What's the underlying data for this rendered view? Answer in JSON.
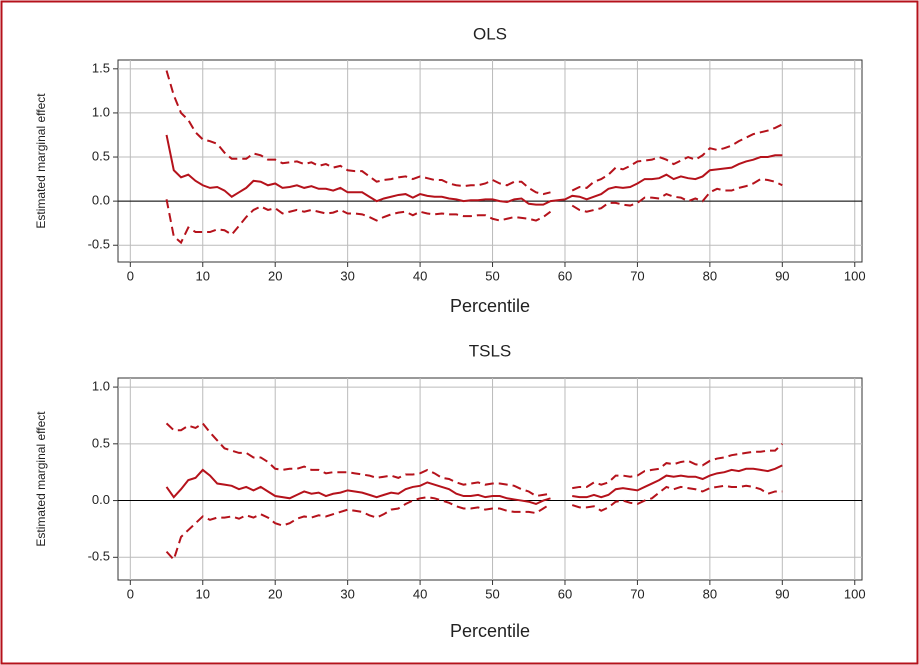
{
  "chart_data": [
    {
      "type": "line",
      "title": "OLS",
      "x_label": "Percentile",
      "y_label": "Estimated marginal effect",
      "xlim": [
        -1.7,
        101
      ],
      "xticks": [
        0,
        10,
        20,
        30,
        40,
        50,
        60,
        70,
        80,
        90,
        100
      ],
      "ylim": [
        -0.69,
        1.6
      ],
      "yticks": [
        -0.5,
        {
          "value": 0,
          "label": "0.0"
        },
        0.5,
        {
          "value": 1,
          "label": "1.0"
        },
        1.5
      ],
      "grid": true,
      "zero_line": true,
      "x": [
        5,
        6,
        7,
        8,
        9,
        10,
        11,
        12,
        13,
        14,
        15,
        16,
        17,
        18,
        19,
        20,
        21,
        22,
        23,
        24,
        25,
        26,
        27,
        28,
        29,
        30,
        31,
        32,
        33,
        34,
        35,
        36,
        37,
        38,
        39,
        40,
        41,
        42,
        43,
        44,
        45,
        46,
        47,
        48,
        49,
        50,
        51,
        52,
        53,
        54,
        55,
        56,
        57,
        58,
        59,
        60,
        61,
        62,
        63,
        64,
        65,
        66,
        67,
        68,
        69,
        70,
        71,
        72,
        73,
        74,
        75,
        76,
        77,
        78,
        79,
        80,
        81,
        82,
        83,
        84,
        85,
        86,
        87,
        88,
        89,
        90
      ],
      "series": [
        {
          "color": "#b5121b",
          "dash": false,
          "values": [
            0.75,
            0.35,
            0.27,
            0.3,
            0.23,
            0.18,
            0.15,
            0.16,
            0.12,
            0.05,
            0.1,
            0.15,
            0.23,
            0.22,
            0.18,
            0.2,
            0.15,
            0.16,
            0.18,
            0.15,
            0.17,
            0.14,
            0.14,
            0.12,
            0.15,
            0.1,
            0.1,
            0.1,
            0.05,
            0.0,
            0.03,
            0.05,
            0.07,
            0.08,
            0.04,
            0.08,
            0.06,
            0.05,
            0.05,
            0.03,
            0.02,
            0.0,
            0.01,
            0.01,
            0.02,
            0.02,
            0.0,
            -0.01,
            0.02,
            0.03,
            -0.03,
            -0.04,
            -0.04,
            0.0,
            0.01,
            0.02,
            0.06,
            0.05,
            0.02,
            0.05,
            0.08,
            0.14,
            0.16,
            0.15,
            0.16,
            0.2,
            0.25,
            0.25,
            0.26,
            0.3,
            0.25,
            0.28,
            0.26,
            0.25,
            0.28,
            0.35,
            0.36,
            0.37,
            0.38,
            0.42,
            0.45,
            0.47,
            0.5,
            0.5,
            0.52,
            0.52
          ]
        },
        {
          "color": "#b5121b",
          "dash": true,
          "values": [
            1.48,
            1.2,
            1.0,
            0.92,
            0.78,
            0.7,
            0.68,
            0.65,
            0.55,
            0.48,
            0.48,
            0.48,
            0.54,
            0.52,
            0.47,
            0.47,
            0.43,
            0.44,
            0.45,
            0.42,
            0.44,
            0.4,
            0.42,
            0.38,
            0.4,
            0.35,
            0.34,
            0.34,
            0.28,
            0.22,
            0.24,
            0.25,
            0.27,
            0.28,
            0.25,
            0.28,
            0.26,
            0.24,
            0.24,
            0.2,
            0.18,
            0.17,
            0.18,
            0.18,
            0.2,
            0.24,
            0.2,
            0.18,
            0.22,
            0.22,
            0.15,
            0.1,
            0.08,
            0.1,
            null,
            null,
            0.12,
            0.16,
            0.15,
            0.22,
            0.25,
            0.3,
            0.38,
            0.36,
            0.4,
            0.45,
            0.46,
            0.47,
            0.5,
            0.47,
            0.42,
            0.46,
            0.5,
            0.47,
            0.52,
            0.6,
            0.58,
            0.6,
            0.63,
            0.68,
            0.72,
            0.76,
            0.78,
            0.8,
            0.83,
            0.87
          ]
        },
        {
          "color": "#b5121b",
          "dash": true,
          "values": [
            0.02,
            -0.4,
            -0.47,
            -0.3,
            -0.35,
            -0.35,
            -0.35,
            -0.32,
            -0.33,
            -0.38,
            -0.28,
            -0.18,
            -0.1,
            -0.06,
            -0.1,
            -0.08,
            -0.14,
            -0.12,
            -0.1,
            -0.12,
            -0.1,
            -0.12,
            -0.14,
            -0.13,
            -0.1,
            -0.14,
            -0.14,
            -0.15,
            -0.18,
            -0.22,
            -0.18,
            -0.15,
            -0.13,
            -0.12,
            -0.16,
            -0.12,
            -0.14,
            -0.15,
            -0.14,
            -0.15,
            -0.15,
            -0.17,
            -0.17,
            -0.16,
            -0.16,
            -0.2,
            -0.22,
            -0.2,
            -0.18,
            -0.19,
            -0.2,
            -0.22,
            -0.18,
            -0.12,
            null,
            null,
            -0.05,
            -0.1,
            -0.12,
            -0.1,
            -0.08,
            -0.02,
            -0.02,
            -0.04,
            -0.05,
            -0.02,
            0.04,
            0.04,
            0.03,
            0.08,
            0.05,
            0.04,
            0.0,
            0.03,
            0.0,
            0.1,
            0.14,
            0.12,
            0.12,
            0.15,
            0.17,
            0.2,
            0.25,
            0.24,
            0.22,
            0.18
          ]
        }
      ]
    },
    {
      "type": "line",
      "title": "TSLS",
      "x_label": "Percentile",
      "y_label": "Estimated marginal effect",
      "xlim": [
        -1.7,
        101
      ],
      "xticks": [
        0,
        10,
        20,
        30,
        40,
        50,
        60,
        70,
        80,
        90,
        100
      ],
      "ylim": [
        -0.7,
        1.08
      ],
      "yticks": [
        -0.5,
        {
          "value": 0,
          "label": "0.0"
        },
        0.5,
        {
          "value": 1,
          "label": "1.0"
        }
      ],
      "grid": true,
      "zero_line": true,
      "x": [
        5,
        6,
        7,
        8,
        9,
        10,
        11,
        12,
        13,
        14,
        15,
        16,
        17,
        18,
        19,
        20,
        21,
        22,
        23,
        24,
        25,
        26,
        27,
        28,
        29,
        30,
        31,
        32,
        33,
        34,
        35,
        36,
        37,
        38,
        39,
        40,
        41,
        42,
        43,
        44,
        45,
        46,
        47,
        48,
        49,
        50,
        51,
        52,
        53,
        54,
        55,
        56,
        57,
        58,
        59,
        60,
        61,
        62,
        63,
        64,
        65,
        66,
        67,
        68,
        69,
        70,
        71,
        72,
        73,
        74,
        75,
        76,
        77,
        78,
        79,
        80,
        81,
        82,
        83,
        84,
        85,
        86,
        87,
        88,
        89,
        90
      ],
      "series": [
        {
          "color": "#b5121b",
          "dash": false,
          "values": [
            0.12,
            0.03,
            0.1,
            0.18,
            0.2,
            0.27,
            0.22,
            0.15,
            0.14,
            0.13,
            0.1,
            0.12,
            0.09,
            0.12,
            0.08,
            0.04,
            0.03,
            0.02,
            0.05,
            0.08,
            0.06,
            0.07,
            0.04,
            0.06,
            0.07,
            0.09,
            0.08,
            0.07,
            0.05,
            0.03,
            0.05,
            0.07,
            0.06,
            0.1,
            0.12,
            0.13,
            0.16,
            0.14,
            0.12,
            0.1,
            0.06,
            0.04,
            0.04,
            0.05,
            0.03,
            0.04,
            0.04,
            0.02,
            0.01,
            0.0,
            -0.01,
            -0.03,
            0.0,
            0.02,
            null,
            null,
            0.04,
            0.03,
            0.03,
            0.05,
            0.03,
            0.05,
            0.1,
            0.11,
            0.1,
            0.09,
            0.12,
            0.15,
            0.18,
            0.22,
            0.21,
            0.22,
            0.21,
            0.21,
            0.19,
            0.22,
            0.24,
            0.25,
            0.27,
            0.26,
            0.28,
            0.28,
            0.27,
            0.26,
            0.28,
            0.31
          ]
        },
        {
          "color": "#b5121b",
          "dash": true,
          "values": [
            0.68,
            0.62,
            0.62,
            0.66,
            0.64,
            0.68,
            0.6,
            0.53,
            0.46,
            0.44,
            0.42,
            0.42,
            0.38,
            0.38,
            0.34,
            0.28,
            0.27,
            0.28,
            0.28,
            0.3,
            0.27,
            0.27,
            0.24,
            0.25,
            0.25,
            0.25,
            0.24,
            0.23,
            0.22,
            0.2,
            0.21,
            0.22,
            0.2,
            0.23,
            0.23,
            0.24,
            0.27,
            0.24,
            0.2,
            0.19,
            0.16,
            0.14,
            0.15,
            0.16,
            0.14,
            0.15,
            0.15,
            0.14,
            0.13,
            0.1,
            0.08,
            0.04,
            0.05,
            0.06,
            null,
            null,
            0.11,
            0.12,
            0.12,
            0.16,
            0.14,
            0.16,
            0.22,
            0.22,
            0.21,
            0.22,
            0.26,
            0.27,
            0.28,
            0.33,
            0.32,
            0.34,
            0.35,
            0.32,
            0.31,
            0.35,
            0.37,
            0.38,
            0.4,
            0.41,
            0.42,
            0.43,
            0.43,
            0.44,
            0.44,
            0.5
          ]
        },
        {
          "color": "#b5121b",
          "dash": true,
          "values": [
            -0.45,
            -0.52,
            -0.32,
            -0.26,
            -0.2,
            -0.14,
            -0.17,
            -0.15,
            -0.15,
            -0.14,
            -0.16,
            -0.13,
            -0.15,
            -0.12,
            -0.15,
            -0.2,
            -0.22,
            -0.2,
            -0.16,
            -0.14,
            -0.15,
            -0.13,
            -0.14,
            -0.12,
            -0.1,
            -0.08,
            -0.09,
            -0.1,
            -0.13,
            -0.15,
            -0.12,
            -0.08,
            -0.07,
            -0.03,
            0.0,
            0.02,
            0.03,
            0.02,
            0.0,
            -0.02,
            -0.05,
            -0.07,
            -0.07,
            -0.06,
            -0.08,
            -0.07,
            -0.07,
            -0.09,
            -0.1,
            -0.1,
            -0.1,
            -0.11,
            -0.07,
            -0.03,
            null,
            null,
            -0.04,
            -0.06,
            -0.06,
            -0.05,
            -0.09,
            -0.06,
            -0.01,
            0.0,
            -0.02,
            -0.03,
            0.0,
            0.02,
            0.07,
            0.12,
            0.1,
            0.12,
            0.11,
            0.1,
            0.08,
            0.11,
            0.12,
            0.13,
            0.12,
            0.12,
            0.13,
            0.12,
            0.1,
            0.06,
            0.08,
            0.08
          ]
        }
      ]
    }
  ]
}
